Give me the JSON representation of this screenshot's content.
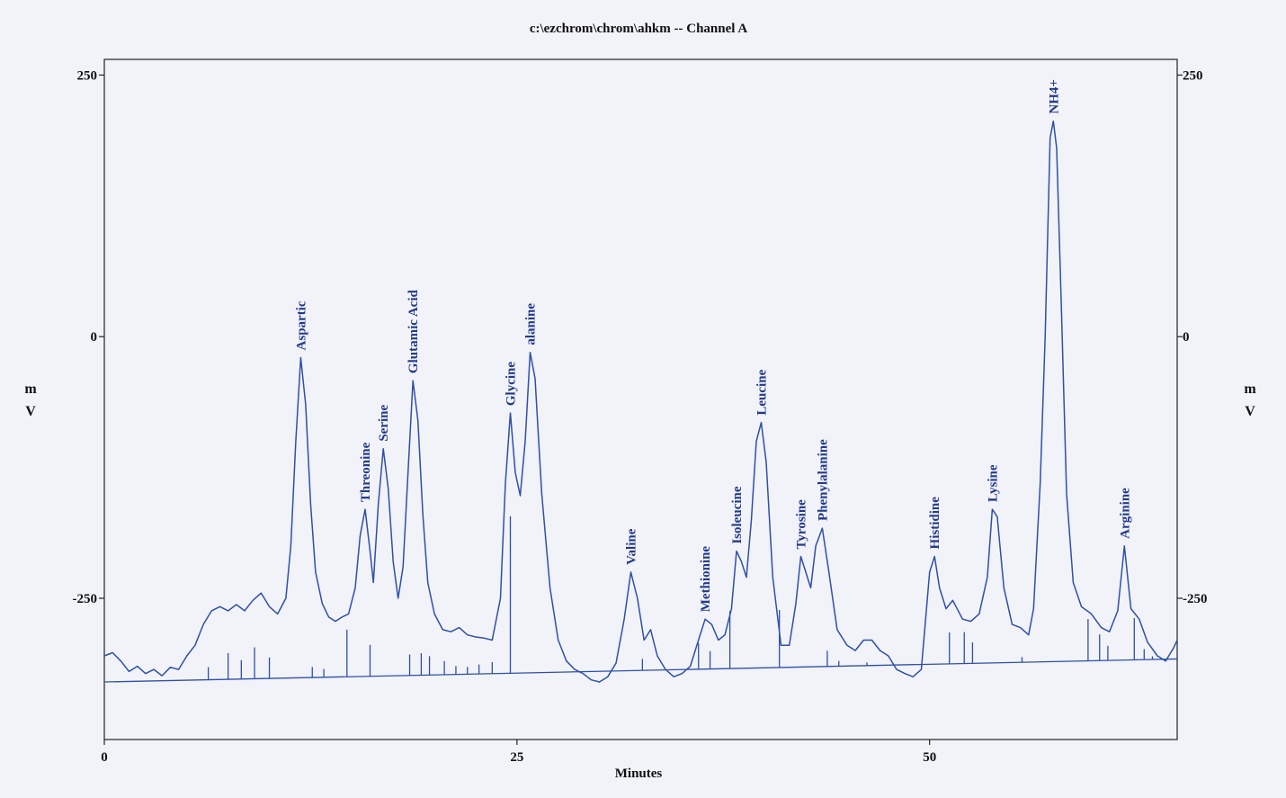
{
  "chart_data": {
    "type": "line",
    "title": "c:\\ezchrom\\chrom\\ahkm -- Channel A",
    "xlabel": "Minutes",
    "ylabel_left": [
      "m",
      "V"
    ],
    "ylabel_right": [
      "m",
      "V"
    ],
    "xlim": [
      0,
      65
    ],
    "ylim": [
      -385,
      265
    ],
    "x_ticks": [
      0,
      25,
      50
    ],
    "y_ticks": [
      250,
      0,
      -250
    ],
    "colors": {
      "trace": "#2f4fa8",
      "axis": "#222222",
      "label": "#233a8a"
    },
    "grid": false,
    "series": [
      {
        "values": [
          [
            0,
            -305
          ],
          [
            0.5,
            -302
          ],
          [
            1,
            -310
          ],
          [
            1.5,
            -320
          ],
          [
            2,
            -315
          ],
          [
            2.5,
            -322
          ],
          [
            3,
            -318
          ],
          [
            3.5,
            -324
          ],
          [
            4,
            -316
          ],
          [
            4.5,
            -318
          ],
          [
            5,
            -305
          ],
          [
            5.5,
            -295
          ],
          [
            6,
            -275
          ],
          [
            6.5,
            -262
          ],
          [
            7,
            -258
          ],
          [
            7.5,
            -262
          ],
          [
            8,
            -256
          ],
          [
            8.5,
            -262
          ],
          [
            9,
            -252
          ],
          [
            9.5,
            -245
          ],
          [
            10,
            -258
          ],
          [
            10.5,
            -265
          ],
          [
            11,
            -250
          ],
          [
            11.3,
            -200
          ],
          [
            11.6,
            -100
          ],
          [
            11.9,
            -20
          ],
          [
            12.2,
            -65
          ],
          [
            12.5,
            -160
          ],
          [
            12.8,
            -225
          ],
          [
            13.2,
            -255
          ],
          [
            13.6,
            -268
          ],
          [
            14,
            -272
          ],
          [
            14.4,
            -268
          ],
          [
            14.8,
            -265
          ],
          [
            15.2,
            -240
          ],
          [
            15.5,
            -190
          ],
          [
            15.8,
            -165
          ],
          [
            16.1,
            -205
          ],
          [
            16.3,
            -235
          ],
          [
            16.6,
            -160
          ],
          [
            16.9,
            -107
          ],
          [
            17.2,
            -145
          ],
          [
            17.5,
            -215
          ],
          [
            17.8,
            -250
          ],
          [
            18.1,
            -220
          ],
          [
            18.4,
            -130
          ],
          [
            18.7,
            -42
          ],
          [
            19.0,
            -80
          ],
          [
            19.3,
            -170
          ],
          [
            19.6,
            -235
          ],
          [
            20,
            -265
          ],
          [
            20.5,
            -280
          ],
          [
            21,
            -282
          ],
          [
            21.5,
            -278
          ],
          [
            22,
            -285
          ],
          [
            22.5,
            -287
          ],
          [
            23,
            -288
          ],
          [
            23.5,
            -290
          ],
          [
            24.0,
            -250
          ],
          [
            24.3,
            -140
          ],
          [
            24.6,
            -73
          ],
          [
            24.9,
            -130
          ],
          [
            25.2,
            -152
          ],
          [
            25.5,
            -100
          ],
          [
            25.8,
            -15
          ],
          [
            26.1,
            -40
          ],
          [
            26.5,
            -150
          ],
          [
            27,
            -240
          ],
          [
            27.5,
            -290
          ],
          [
            28,
            -310
          ],
          [
            28.5,
            -318
          ],
          [
            29,
            -322
          ],
          [
            29.5,
            -328
          ],
          [
            30,
            -330
          ],
          [
            30.5,
            -325
          ],
          [
            31,
            -312
          ],
          [
            31.5,
            -270
          ],
          [
            31.9,
            -225
          ],
          [
            32.3,
            -250
          ],
          [
            32.7,
            -290
          ],
          [
            33.1,
            -280
          ],
          [
            33.5,
            -305
          ],
          [
            34,
            -318
          ],
          [
            34.5,
            -325
          ],
          [
            35,
            -322
          ],
          [
            35.5,
            -315
          ],
          [
            36,
            -290
          ],
          [
            36.4,
            -270
          ],
          [
            36.8,
            -275
          ],
          [
            37.2,
            -290
          ],
          [
            37.6,
            -285
          ],
          [
            38,
            -260
          ],
          [
            38.3,
            -205
          ],
          [
            38.6,
            -215
          ],
          [
            38.9,
            -230
          ],
          [
            39.2,
            -175
          ],
          [
            39.5,
            -100
          ],
          [
            39.8,
            -82
          ],
          [
            40.1,
            -120
          ],
          [
            40.5,
            -230
          ],
          [
            41,
            -295
          ],
          [
            41.5,
            -295
          ],
          [
            41.9,
            -255
          ],
          [
            42.2,
            -210
          ],
          [
            42.5,
            -225
          ],
          [
            42.8,
            -240
          ],
          [
            43.1,
            -200
          ],
          [
            43.5,
            -183
          ],
          [
            43.9,
            -225
          ],
          [
            44.4,
            -280
          ],
          [
            45,
            -295
          ],
          [
            45.5,
            -300
          ],
          [
            46,
            -290
          ],
          [
            46.5,
            -290
          ],
          [
            47,
            -300
          ],
          [
            47.5,
            -305
          ],
          [
            48,
            -318
          ],
          [
            48.5,
            -322
          ],
          [
            49,
            -325
          ],
          [
            49.5,
            -318
          ],
          [
            50.0,
            -225
          ],
          [
            50.3,
            -210
          ],
          [
            50.6,
            -240
          ],
          [
            51,
            -260
          ],
          [
            51.4,
            -252
          ],
          [
            52,
            -270
          ],
          [
            52.5,
            -272
          ],
          [
            53,
            -265
          ],
          [
            53.5,
            -230
          ],
          [
            53.8,
            -165
          ],
          [
            54.1,
            -172
          ],
          [
            54.5,
            -240
          ],
          [
            55,
            -275
          ],
          [
            55.5,
            -278
          ],
          [
            56,
            -285
          ],
          [
            56.3,
            -260
          ],
          [
            56.7,
            -140
          ],
          [
            57.0,
            0
          ],
          [
            57.3,
            190
          ],
          [
            57.5,
            206
          ],
          [
            57.7,
            180
          ],
          [
            58.0,
            20
          ],
          [
            58.3,
            -150
          ],
          [
            58.7,
            -235
          ],
          [
            59.2,
            -258
          ],
          [
            59.8,
            -265
          ],
          [
            60.4,
            -278
          ],
          [
            60.9,
            -282
          ],
          [
            61.4,
            -262
          ],
          [
            61.8,
            -200
          ],
          [
            62.2,
            -260
          ],
          [
            62.7,
            -270
          ],
          [
            63.2,
            -292
          ],
          [
            63.8,
            -305
          ],
          [
            64.3,
            -310
          ],
          [
            64.8,
            -297
          ],
          [
            65,
            -290
          ]
        ]
      }
    ],
    "baseline": [
      [
        0,
        -330
      ],
      [
        65,
        -308
      ]
    ],
    "markers": [
      [
        6.3,
        -12
      ],
      [
        7.5,
        -25
      ],
      [
        8.3,
        -18
      ],
      [
        9.1,
        -30
      ],
      [
        10.0,
        -20
      ],
      [
        12.6,
        -10
      ],
      [
        13.3,
        -8
      ],
      [
        14.7,
        -45
      ],
      [
        16.1,
        -30
      ],
      [
        18.5,
        -20
      ],
      [
        19.2,
        -21
      ],
      [
        19.7,
        -18
      ],
      [
        20.6,
        -13
      ],
      [
        21.3,
        -8
      ],
      [
        22.0,
        -7
      ],
      [
        22.7,
        -9
      ],
      [
        23.5,
        -11
      ],
      [
        24.6,
        -150
      ],
      [
        32.6,
        -11
      ],
      [
        36.0,
        -25
      ],
      [
        36.7,
        -17
      ],
      [
        37.9,
        -55
      ],
      [
        40.9,
        -55
      ],
      [
        43.8,
        -15
      ],
      [
        44.5,
        -5
      ],
      [
        46.2,
        -3
      ],
      [
        51.2,
        -30
      ],
      [
        52.1,
        -30
      ],
      [
        52.6,
        -20
      ],
      [
        55.6,
        -5
      ],
      [
        59.6,
        -40
      ],
      [
        60.3,
        -25
      ],
      [
        60.8,
        -14
      ],
      [
        62.4,
        -40
      ],
      [
        63.0,
        -10
      ],
      [
        63.5,
        -3
      ],
      [
        64.0,
        -1
      ]
    ],
    "peaks": [
      {
        "label": "Aspartic",
        "x": 11.9,
        "y": -20
      },
      {
        "label": "Threonine",
        "x": 15.8,
        "y": -165
      },
      {
        "label": "Serine",
        "x": 16.9,
        "y": -107
      },
      {
        "label": "Glutamic Acid",
        "x": 18.7,
        "y": -42
      },
      {
        "label": "Glycine",
        "x": 24.6,
        "y": -73
      },
      {
        "label": "alanine",
        "x": 25.8,
        "y": -15
      },
      {
        "label": "Valine",
        "x": 31.9,
        "y": -225
      },
      {
        "label": "Methionine",
        "x": 36.4,
        "y": -270
      },
      {
        "label": "Isoleucine",
        "x": 38.3,
        "y": -205
      },
      {
        "label": "Leucine",
        "x": 39.8,
        "y": -82
      },
      {
        "label": "Tyrosine",
        "x": 42.2,
        "y": -210
      },
      {
        "label": "Phenylalanine",
        "x": 43.5,
        "y": -183
      },
      {
        "label": "Histidine",
        "x": 50.3,
        "y": -210
      },
      {
        "label": "Lysine",
        "x": 53.8,
        "y": -165
      },
      {
        "label": "NH4+",
        "x": 57.5,
        "y": 206
      },
      {
        "label": "Arginine",
        "x": 61.8,
        "y": -200
      }
    ]
  }
}
